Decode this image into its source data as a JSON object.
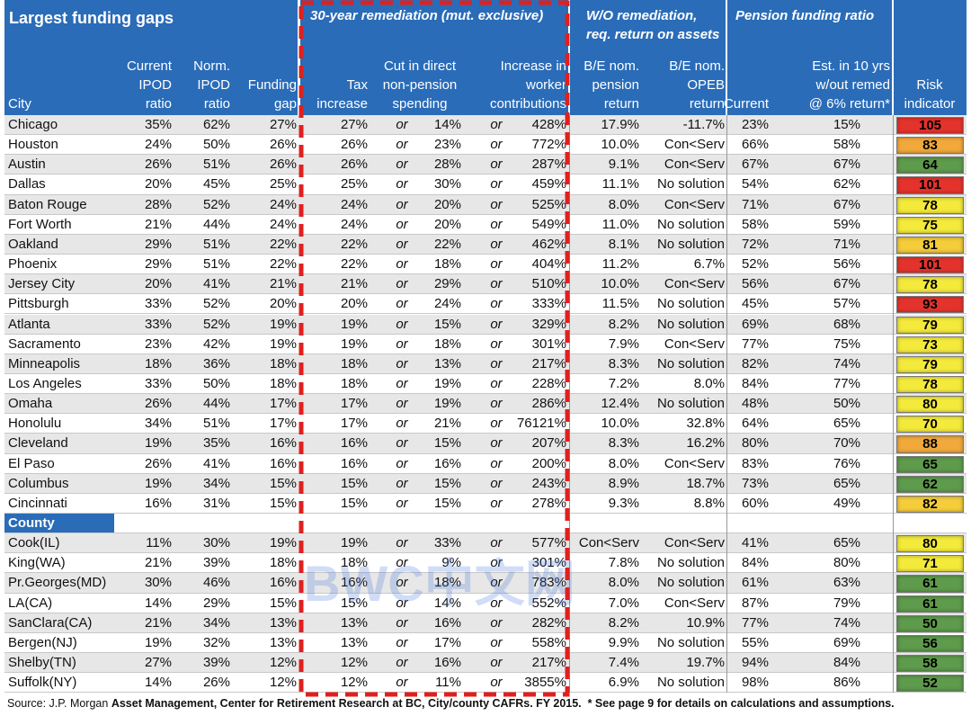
{
  "header": {
    "title": "Largest funding gaps",
    "groups": [
      "30-year remediation (mut. exclusive)",
      "W/O remediation,\nreq. return on assets",
      "Pension funding ratio"
    ],
    "columns": [
      "City",
      "Current\nIPOD\nratio",
      "Norm.\nIPOD\nratio",
      "Funding\ngap",
      "Tax\nincrease",
      "Cut in direct\nnon-pension\nspending",
      "Increase in\nworker\ncontributions",
      "B/E nom.\npension\nreturn",
      "B/E nom.\nOPEB\nreturn",
      "Current",
      "Est. in 10 yrs\nw/out remed\n@ 6% return*",
      "Risk\nindicator"
    ]
  },
  "connector": "or",
  "cities": [
    {
      "cells": [
        "Chicago",
        "35%",
        "62%",
        "27%",
        "27%",
        "14%",
        "428%",
        "17.9%",
        "-11.7%",
        "23%",
        "15%"
      ],
      "risk": 105,
      "color": "#e4332c"
    },
    {
      "cells": [
        "Houston",
        "24%",
        "50%",
        "26%",
        "26%",
        "23%",
        "772%",
        "10.0%",
        "Con<Serv",
        "66%",
        "58%"
      ],
      "risk": 83,
      "color": "#f2a93b"
    },
    {
      "cells": [
        "Austin",
        "26%",
        "51%",
        "26%",
        "26%",
        "28%",
        "287%",
        "9.1%",
        "Con<Serv",
        "67%",
        "67%"
      ],
      "risk": 64,
      "color": "#5e9b4c"
    },
    {
      "cells": [
        "Dallas",
        "20%",
        "45%",
        "25%",
        "25%",
        "30%",
        "459%",
        "11.1%",
        "No solution",
        "54%",
        "62%"
      ],
      "risk": 101,
      "color": "#e4332c"
    },
    {
      "cells": [
        "Baton Rouge",
        "28%",
        "52%",
        "24%",
        "24%",
        "20%",
        "525%",
        "8.0%",
        "Con<Serv",
        "71%",
        "67%"
      ],
      "risk": 78,
      "color": "#f4ea3c"
    },
    {
      "cells": [
        "Fort Worth",
        "21%",
        "44%",
        "24%",
        "24%",
        "20%",
        "549%",
        "11.0%",
        "No solution",
        "58%",
        "59%"
      ],
      "risk": 75,
      "color": "#f4ea3c"
    },
    {
      "cells": [
        "Oakland",
        "29%",
        "51%",
        "22%",
        "22%",
        "22%",
        "462%",
        "8.1%",
        "No solution",
        "72%",
        "71%"
      ],
      "risk": 81,
      "color": "#f5cc3a"
    },
    {
      "cells": [
        "Phoenix",
        "29%",
        "51%",
        "22%",
        "22%",
        "18%",
        "404%",
        "11.2%",
        "6.7%",
        "52%",
        "56%"
      ],
      "risk": 101,
      "color": "#e4332c"
    },
    {
      "cells": [
        "Jersey City",
        "20%",
        "41%",
        "21%",
        "21%",
        "29%",
        "510%",
        "10.0%",
        "Con<Serv",
        "56%",
        "67%"
      ],
      "risk": 78,
      "color": "#f4ea3c"
    },
    {
      "cells": [
        "Pittsburgh",
        "33%",
        "52%",
        "20%",
        "20%",
        "24%",
        "333%",
        "11.5%",
        "No solution",
        "45%",
        "57%"
      ],
      "risk": 93,
      "color": "#e4332c"
    },
    {
      "cells": [
        "Atlanta",
        "33%",
        "52%",
        "19%",
        "19%",
        "15%",
        "329%",
        "8.2%",
        "No solution",
        "69%",
        "68%"
      ],
      "risk": 79,
      "color": "#f4ea3c"
    },
    {
      "cells": [
        "Sacramento",
        "23%",
        "42%",
        "19%",
        "19%",
        "18%",
        "301%",
        "7.9%",
        "Con<Serv",
        "77%",
        "75%"
      ],
      "risk": 73,
      "color": "#f4ea3c"
    },
    {
      "cells": [
        "Minneapolis",
        "18%",
        "36%",
        "18%",
        "18%",
        "13%",
        "217%",
        "8.3%",
        "No solution",
        "82%",
        "74%"
      ],
      "risk": 79,
      "color": "#f4ea3c"
    },
    {
      "cells": [
        "Los Angeles",
        "33%",
        "50%",
        "18%",
        "18%",
        "19%",
        "228%",
        "7.2%",
        "8.0%",
        "84%",
        "77%"
      ],
      "risk": 78,
      "color": "#f4ea3c"
    },
    {
      "cells": [
        "Omaha",
        "26%",
        "44%",
        "17%",
        "17%",
        "19%",
        "286%",
        "12.4%",
        "No solution",
        "48%",
        "50%"
      ],
      "risk": 80,
      "color": "#f4ea3c"
    },
    {
      "cells": [
        "Honolulu",
        "34%",
        "51%",
        "17%",
        "17%",
        "21%",
        "76121%",
        "10.0%",
        "32.8%",
        "64%",
        "65%"
      ],
      "risk": 70,
      "color": "#f4ea3c"
    },
    {
      "cells": [
        "Cleveland",
        "19%",
        "35%",
        "16%",
        "16%",
        "15%",
        "207%",
        "8.3%",
        "16.2%",
        "80%",
        "70%"
      ],
      "risk": 88,
      "color": "#f2a93b"
    },
    {
      "cells": [
        "El Paso",
        "26%",
        "41%",
        "16%",
        "16%",
        "16%",
        "200%",
        "8.0%",
        "Con<Serv",
        "83%",
        "76%"
      ],
      "risk": 65,
      "color": "#5e9b4c"
    },
    {
      "cells": [
        "Columbus",
        "19%",
        "34%",
        "15%",
        "15%",
        "15%",
        "243%",
        "8.9%",
        "18.7%",
        "73%",
        "65%"
      ],
      "risk": 62,
      "color": "#5e9b4c"
    },
    {
      "cells": [
        "Cincinnati",
        "16%",
        "31%",
        "15%",
        "15%",
        "15%",
        "278%",
        "9.3%",
        "8.8%",
        "60%",
        "49%"
      ],
      "risk": 82,
      "color": "#f5cc3a"
    }
  ],
  "county_label": "County",
  "counties": [
    {
      "cells": [
        "Cook(IL)",
        "11%",
        "30%",
        "19%",
        "19%",
        "33%",
        "577%",
        "Con<Serv",
        "Con<Serv",
        "41%",
        "65%"
      ],
      "risk": 80,
      "color": "#f4ea3c"
    },
    {
      "cells": [
        "King(WA)",
        "21%",
        "39%",
        "18%",
        "18%",
        "9%",
        "301%",
        "7.8%",
        "No solution",
        "84%",
        "80%"
      ],
      "risk": 71,
      "color": "#f4ea3c"
    },
    {
      "cells": [
        "Pr.Georges(MD)",
        "30%",
        "46%",
        "16%",
        "16%",
        "18%",
        "783%",
        "8.0%",
        "No solution",
        "61%",
        "63%"
      ],
      "risk": 61,
      "color": "#5e9b4c"
    },
    {
      "cells": [
        "LA(CA)",
        "14%",
        "29%",
        "15%",
        "15%",
        "14%",
        "552%",
        "7.0%",
        "Con<Serv",
        "87%",
        "79%"
      ],
      "risk": 61,
      "color": "#5e9b4c"
    },
    {
      "cells": [
        "SanClara(CA)",
        "21%",
        "34%",
        "13%",
        "13%",
        "16%",
        "282%",
        "8.2%",
        "10.9%",
        "77%",
        "74%"
      ],
      "risk": 50,
      "color": "#5e9b4c"
    },
    {
      "cells": [
        "Bergen(NJ)",
        "19%",
        "32%",
        "13%",
        "13%",
        "17%",
        "558%",
        "9.9%",
        "No solution",
        "55%",
        "69%"
      ],
      "risk": 56,
      "color": "#5e9b4c"
    },
    {
      "cells": [
        "Shelby(TN)",
        "27%",
        "39%",
        "12%",
        "12%",
        "16%",
        "217%",
        "7.4%",
        "19.7%",
        "94%",
        "84%"
      ],
      "risk": 58,
      "color": "#5e9b4c"
    },
    {
      "cells": [
        "Suffolk(NY)",
        "14%",
        "26%",
        "12%",
        "12%",
        "11%",
        "3855%",
        "6.9%",
        "No solution",
        "98%",
        "86%"
      ],
      "risk": 52,
      "color": "#5e9b4c"
    }
  ],
  "watermark": "BWC中文网",
  "footer": {
    "source_prefix": "Source: J.P. Morgan ",
    "source_text": "Asset Management, Center for Retirement Research at BC, City/county CAFRs. FY 2015.  * See page 9 for details on calculations and assumptions."
  }
}
